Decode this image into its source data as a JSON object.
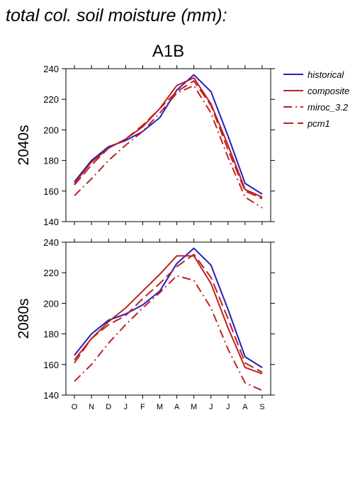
{
  "page": {
    "title": "total col. soil moisture (mm):"
  },
  "legend": {
    "entries": [
      {
        "name": "historical",
        "color": "#2020c0",
        "dash": "solid"
      },
      {
        "name": "composite",
        "color": "#c02020",
        "dash": "solid"
      },
      {
        "name": "miroc_3.2",
        "color": "#c02020",
        "dash": "dashdot"
      },
      {
        "name": "pcm1",
        "color": "#c02020",
        "dash": "dash"
      }
    ]
  },
  "chart_data": [
    {
      "type": "line",
      "title": "A1B",
      "ylabel": "2040s",
      "xlabel": "",
      "categories": [
        "O",
        "N",
        "D",
        "J",
        "F",
        "M",
        "A",
        "M",
        "J",
        "J",
        "A",
        "S"
      ],
      "ylim": [
        140,
        240
      ],
      "yticks": [
        140,
        160,
        180,
        200,
        220,
        240
      ],
      "series": [
        {
          "name": "historical",
          "color": "#2020c0",
          "dash": "solid",
          "values": [
            166,
            180,
            189,
            193,
            199,
            208,
            226,
            236,
            225,
            196,
            165,
            158
          ]
        },
        {
          "name": "composite",
          "color": "#c02020",
          "dash": "solid",
          "values": [
            165,
            179,
            188,
            194,
            202,
            214,
            229,
            234,
            217,
            190,
            161,
            156
          ]
        },
        {
          "name": "miroc_3.2",
          "color": "#c02020",
          "dash": "dashdot",
          "values": [
            157,
            168,
            180,
            190,
            199,
            211,
            224,
            229,
            211,
            182,
            156,
            149
          ]
        },
        {
          "name": "pcm1",
          "color": "#c02020",
          "dash": "dash",
          "values": [
            164,
            177,
            188,
            194,
            203,
            214,
            225,
            232,
            216,
            187,
            160,
            155
          ]
        }
      ]
    },
    {
      "type": "line",
      "title": "",
      "ylabel": "2080s",
      "xlabel": "",
      "categories": [
        "O",
        "N",
        "D",
        "J",
        "F",
        "M",
        "A",
        "M",
        "J",
        "J",
        "A",
        "S"
      ],
      "ylim": [
        140,
        240
      ],
      "yticks": [
        140,
        160,
        180,
        200,
        220,
        240
      ],
      "series": [
        {
          "name": "historical",
          "color": "#2020c0",
          "dash": "solid",
          "values": [
            166,
            180,
            189,
            193,
            199,
            208,
            226,
            236,
            225,
            196,
            165,
            158
          ]
        },
        {
          "name": "composite",
          "color": "#c02020",
          "dash": "solid",
          "values": [
            163,
            177,
            188,
            197,
            208,
            219,
            231,
            231,
            213,
            184,
            158,
            154
          ]
        },
        {
          "name": "miroc_3.2",
          "color": "#c02020",
          "dash": "dashdot",
          "values": [
            149,
            160,
            174,
            186,
            197,
            207,
            218,
            215,
            197,
            170,
            148,
            143
          ]
        },
        {
          "name": "pcm1",
          "color": "#c02020",
          "dash": "dash",
          "values": [
            161,
            177,
            186,
            192,
            203,
            213,
            224,
            232,
            217,
            190,
            161,
            155
          ]
        }
      ]
    }
  ]
}
